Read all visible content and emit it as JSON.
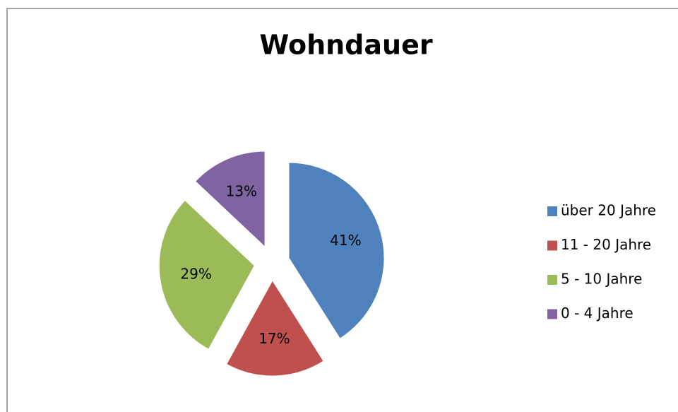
{
  "chart_data": {
    "type": "pie",
    "title": "Wohndauer",
    "categories": [
      "über 20 Jahre",
      "11 - 20 Jahre",
      "5 - 10 Jahre",
      "0 - 4 Jahre"
    ],
    "values": [
      41,
      17,
      29,
      13
    ],
    "value_labels": [
      "41%",
      "17%",
      "29%",
      "13%"
    ],
    "colors": [
      "#4f81bd",
      "#c0504d",
      "#9bbb59",
      "#8064a2"
    ],
    "legend": "right"
  }
}
